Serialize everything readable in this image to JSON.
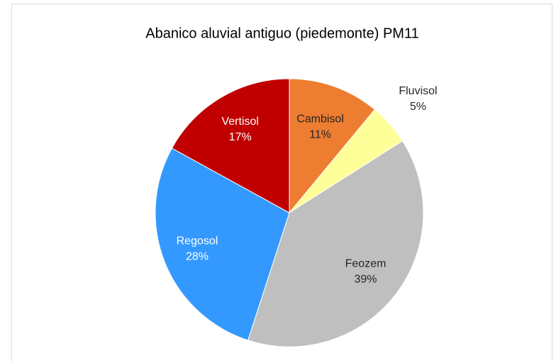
{
  "chart_data": {
    "type": "pie",
    "title": "Abanico aluvial antiguo (piedemonte) PM11",
    "categories": [
      "Cambisol",
      "Fluvisol",
      "Feozem",
      "Regosol",
      "Vertisol"
    ],
    "values": [
      11,
      5,
      39,
      28,
      17
    ],
    "value_labels": [
      "11%",
      "5%",
      "39%",
      "28%",
      "17%"
    ],
    "colors": [
      "#ed7d31",
      "#ffff99",
      "#bfbfbf",
      "#3399ff",
      "#c00000"
    ],
    "label_colors": [
      "#262626",
      "#262626",
      "#262626",
      "#ffffff",
      "#ffffff"
    ]
  }
}
